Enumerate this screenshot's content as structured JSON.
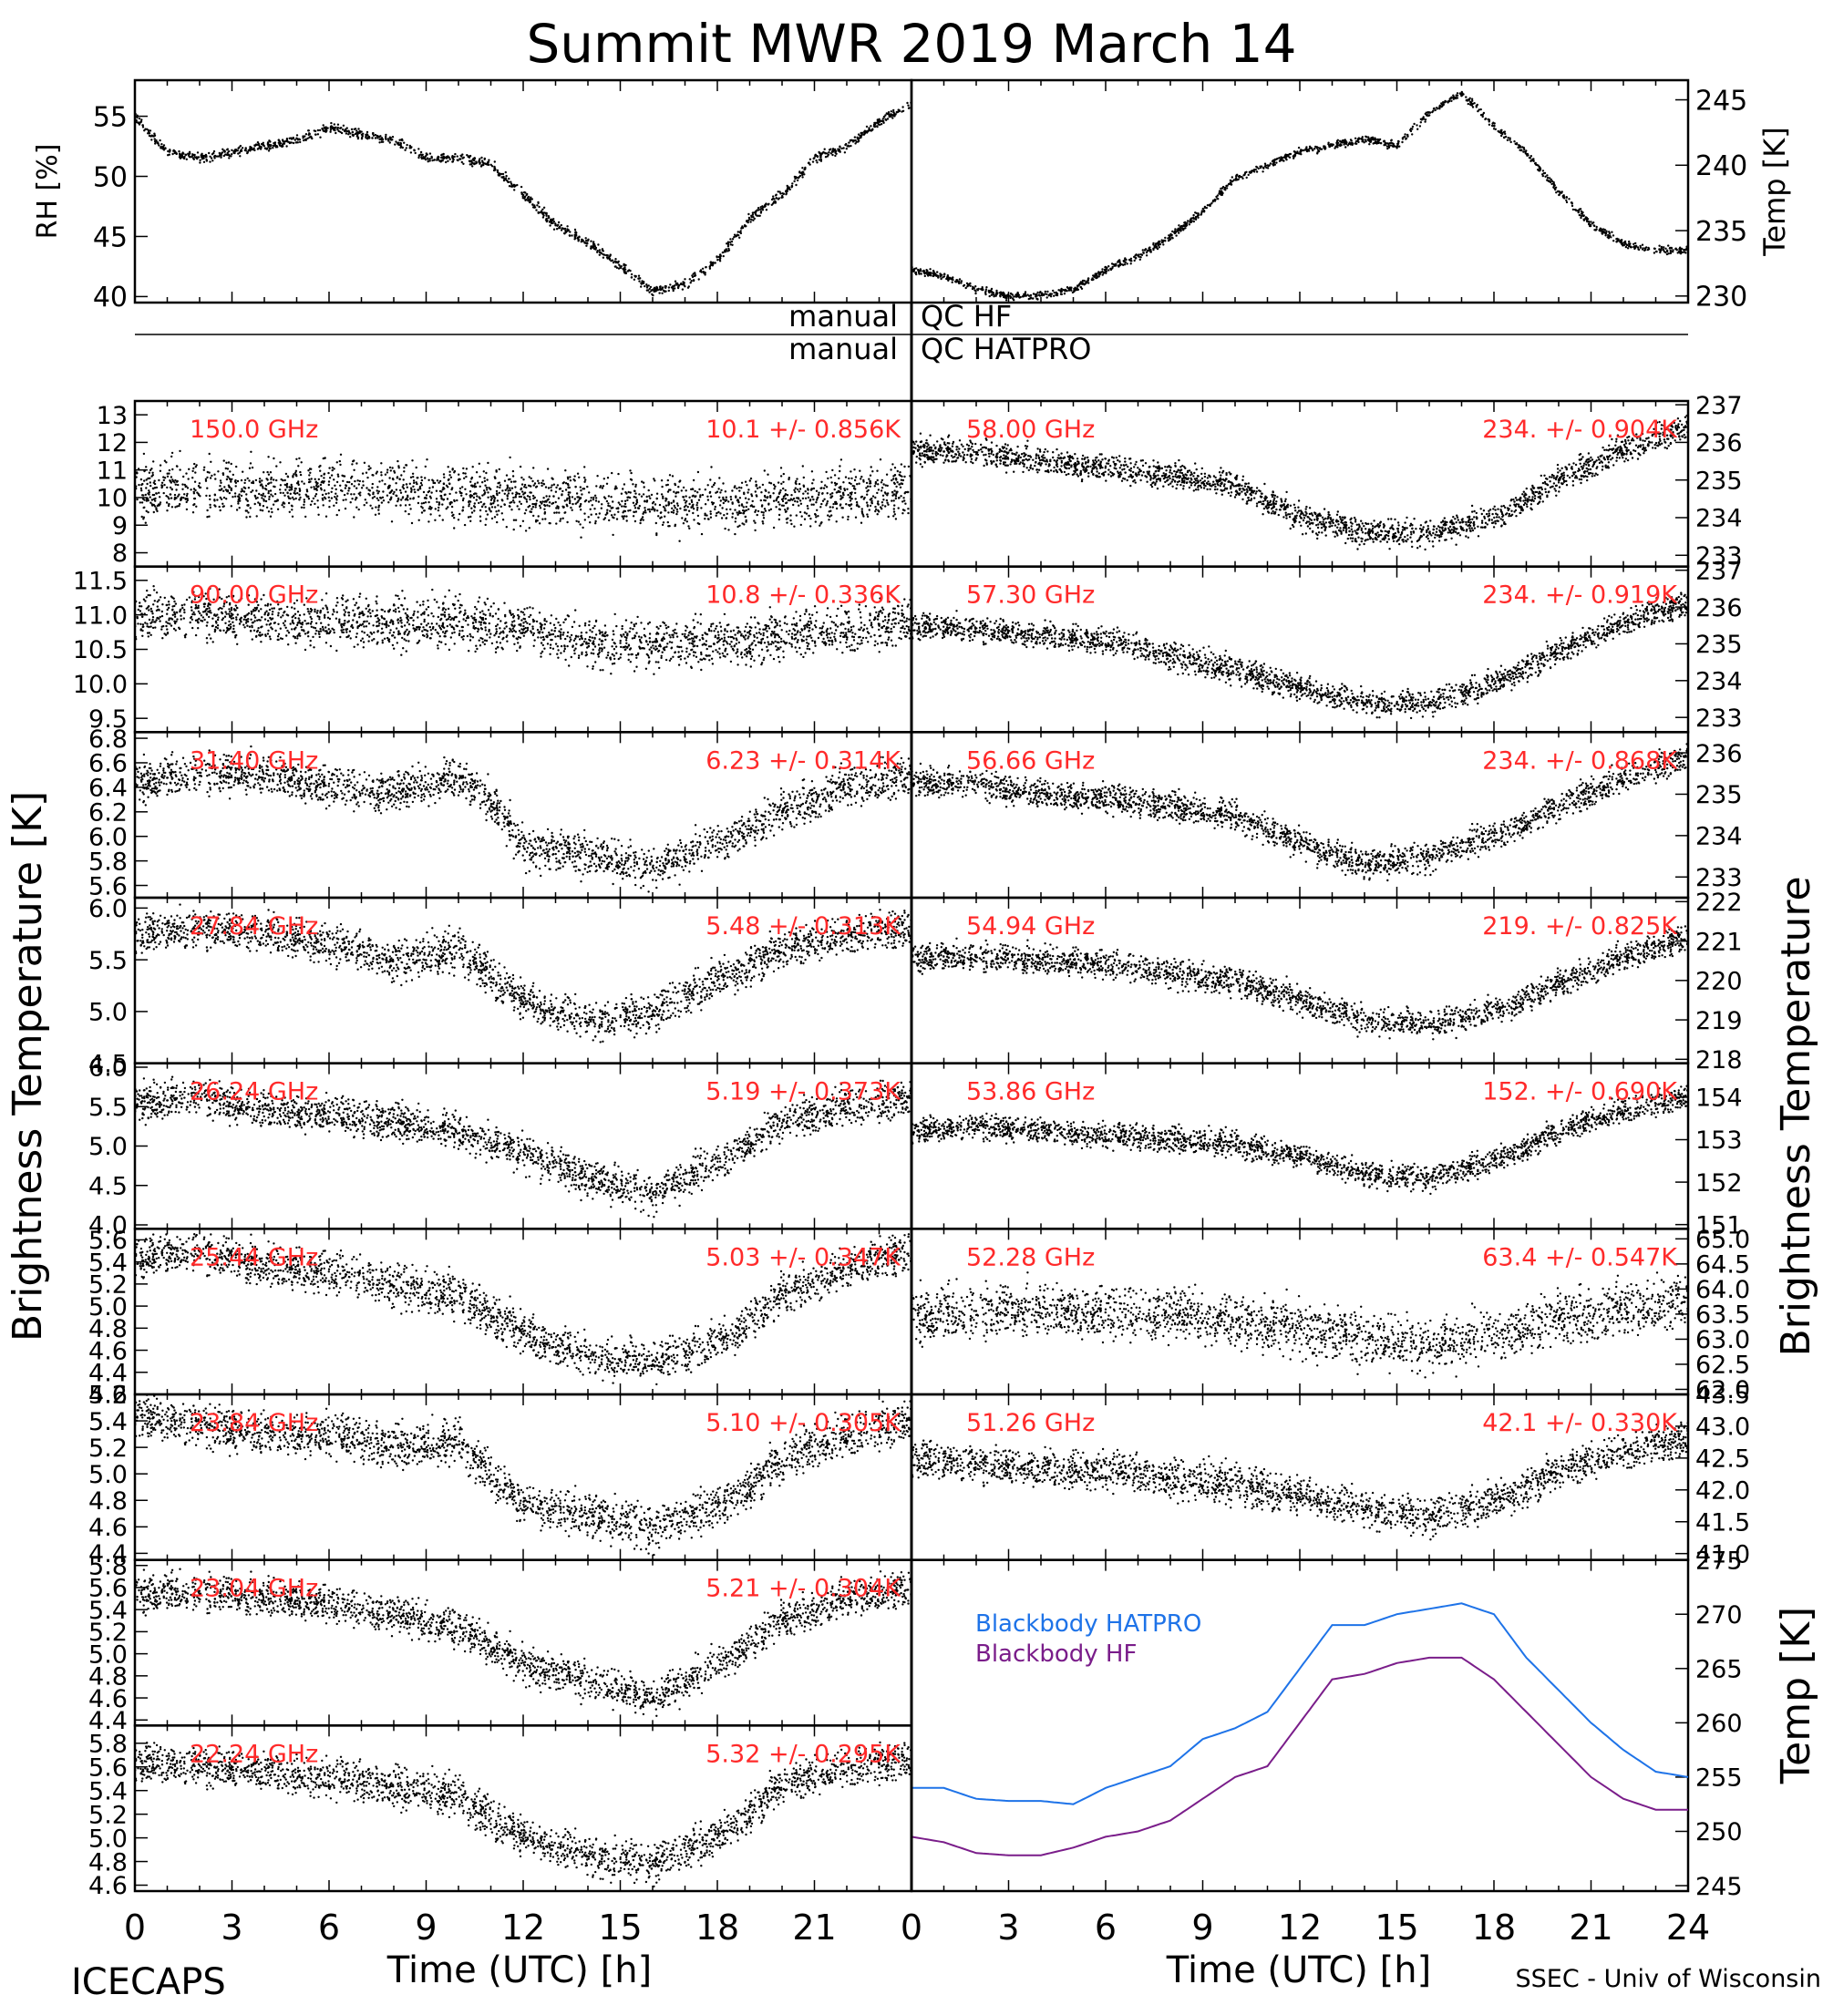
{
  "title": "Summit MWR 2019 March 14",
  "footer_left": "ICECAPS",
  "footer_right": "SSEC - Univ of Wisconsin",
  "left_ylabel": "Brightness Temperature [K]",
  "right_ylabel": "Brightness Temperature",
  "xlabel": "Time (UTC) [h]",
  "x_ticks": [
    "0",
    "3",
    "6",
    "9",
    "12",
    "15",
    "18",
    "21"
  ],
  "x_ticks_right": [
    "0",
    "3",
    "6",
    "9",
    "12",
    "15",
    "18",
    "21",
    "24"
  ],
  "qc_rows": [
    {
      "left": "manual",
      "right": "QC HF"
    },
    {
      "left": "manual",
      "right": "QC HATPRO"
    }
  ],
  "colors": {
    "annotation": "#ff2a2a",
    "hatpro": "#1e73e8",
    "hf": "#7a1d8a",
    "data": "#000000"
  },
  "chart_data": [
    {
      "type": "scatter",
      "panel": "RH",
      "ylabel": "RH [%]",
      "ylim": [
        39.5,
        58
      ],
      "yticks": [
        "40",
        "45",
        "50",
        "55"
      ],
      "x": [
        0,
        1,
        2,
        3,
        4,
        5,
        6,
        7,
        8,
        9,
        10,
        11,
        12,
        13,
        14,
        15,
        16,
        17,
        18,
        19,
        20,
        21,
        22,
        23,
        24
      ],
      "y": [
        55,
        52,
        51.5,
        52,
        52.5,
        53,
        54,
        53.5,
        53,
        51.5,
        51.5,
        51,
        48.5,
        46,
        44.5,
        42.5,
        40.5,
        41,
        43,
        46.5,
        48.5,
        51.5,
        52.5,
        54.5,
        56
      ]
    },
    {
      "type": "scatter",
      "panel": "Temp",
      "ylabel": "Temp [K]",
      "ylim": [
        229.5,
        246.5
      ],
      "yticks": [
        "230",
        "235",
        "240",
        "245"
      ],
      "x": [
        0,
        1,
        2,
        3,
        4,
        5,
        6,
        7,
        8,
        9,
        10,
        11,
        12,
        13,
        14,
        15,
        16,
        17,
        18,
        19,
        20,
        21,
        22,
        23,
        24
      ],
      "y": [
        232,
        231.5,
        230.5,
        230,
        230,
        230.5,
        232,
        233,
        234.5,
        236.5,
        239,
        240,
        241,
        241.5,
        242,
        241.5,
        244,
        245.5,
        243,
        241,
        238,
        235.5,
        234,
        233.5,
        233.5
      ]
    },
    {
      "type": "scatter",
      "series_label": "150.0 GHz",
      "stats": "10.1 +/- 0.856K",
      "ylim": [
        7.5,
        13.5
      ],
      "yticks": [
        "8",
        "9",
        "10",
        "11",
        "12",
        "13"
      ],
      "noise": 0.85,
      "x": [
        0,
        2,
        4,
        6,
        8,
        10,
        12,
        14,
        16,
        18,
        20,
        22,
        24
      ],
      "y": [
        10.3,
        10.4,
        10.2,
        10.4,
        10.3,
        10.2,
        10.0,
        9.9,
        9.8,
        9.8,
        9.9,
        10.1,
        10.3
      ]
    },
    {
      "type": "scatter",
      "series_label": "90.00 GHz",
      "stats": "10.8 +/- 0.336K",
      "ylim": [
        9.3,
        11.7
      ],
      "yticks": [
        "9.5",
        "10.0",
        "10.5",
        "11.0",
        "11.5"
      ],
      "noise": 0.3,
      "x": [
        0,
        2,
        4,
        6,
        8,
        10,
        12,
        14,
        16,
        18,
        20,
        22,
        24
      ],
      "y": [
        11.0,
        11.0,
        10.9,
        10.9,
        10.9,
        10.9,
        10.8,
        10.6,
        10.6,
        10.6,
        10.7,
        10.8,
        10.9
      ]
    },
    {
      "type": "scatter",
      "series_label": "31.40 GHz",
      "stats": "6.23 +/- 0.314K",
      "ylim": [
        5.5,
        6.85
      ],
      "yticks": [
        "5.6",
        "5.8",
        "6.0",
        "6.2",
        "6.4",
        "6.6",
        "6.8"
      ],
      "noise": 0.14,
      "x": [
        0,
        2,
        4,
        6,
        8,
        10,
        11,
        12,
        14,
        16,
        18,
        20,
        22,
        24
      ],
      "y": [
        6.45,
        6.5,
        6.5,
        6.4,
        6.35,
        6.5,
        6.3,
        5.9,
        5.85,
        5.75,
        5.95,
        6.2,
        6.4,
        6.5
      ]
    },
    {
      "type": "scatter",
      "series_label": "27.84 GHz",
      "stats": "5.48 +/- 0.313K",
      "ylim": [
        4.5,
        6.1
      ],
      "yticks": [
        "4.5",
        "5.0",
        "5.5",
        "6.0"
      ],
      "noise": 0.16,
      "x": [
        0,
        2,
        4,
        6,
        8,
        10,
        12,
        14,
        16,
        18,
        20,
        22,
        24
      ],
      "y": [
        5.75,
        5.8,
        5.75,
        5.65,
        5.5,
        5.6,
        5.1,
        4.9,
        5.0,
        5.3,
        5.6,
        5.75,
        5.8
      ]
    },
    {
      "type": "scatter",
      "series_label": "26.24 GHz",
      "stats": "5.19 +/- 0.373K",
      "ylim": [
        3.95,
        6.05
      ],
      "yticks": [
        "4.0",
        "4.5",
        "5.0",
        "5.5",
        "6.0"
      ],
      "noise": 0.2,
      "x": [
        0,
        2,
        4,
        6,
        8,
        10,
        12,
        14,
        16,
        18,
        20,
        22,
        24
      ],
      "y": [
        5.55,
        5.6,
        5.45,
        5.4,
        5.3,
        5.2,
        4.9,
        4.6,
        4.4,
        4.8,
        5.3,
        5.5,
        5.6
      ]
    },
    {
      "type": "scatter",
      "series_label": "25.44 GHz",
      "stats": "5.03 +/- 0.347K",
      "ylim": [
        4.2,
        5.7
      ],
      "yticks": [
        "4.2",
        "4.4",
        "4.6",
        "4.8",
        "5.0",
        "5.2",
        "5.4",
        "5.6"
      ],
      "noise": 0.16,
      "x": [
        0,
        2,
        4,
        6,
        8,
        10,
        12,
        14,
        16,
        18,
        20,
        22,
        24
      ],
      "y": [
        5.45,
        5.5,
        5.35,
        5.3,
        5.2,
        5.1,
        4.75,
        4.55,
        4.5,
        4.65,
        5.1,
        5.35,
        5.5
      ]
    },
    {
      "type": "scatter",
      "series_label": "23.84 GHz",
      "stats": "5.10 +/- 0.305K",
      "ylim": [
        4.35,
        5.6
      ],
      "yticks": [
        "4.4",
        "4.6",
        "4.8",
        "5.0",
        "5.2",
        "5.4",
        "5.6"
      ],
      "noise": 0.14,
      "x": [
        0,
        2,
        4,
        6,
        8,
        10,
        12,
        14,
        16,
        18,
        20,
        22,
        24
      ],
      "y": [
        5.45,
        5.35,
        5.3,
        5.3,
        5.2,
        5.25,
        4.75,
        4.7,
        4.6,
        4.75,
        5.1,
        5.3,
        5.4
      ]
    },
    {
      "type": "scatter",
      "series_label": "23.04 GHz",
      "stats": "5.21 +/- 0.304K",
      "ylim": [
        4.35,
        5.85
      ],
      "yticks": [
        "4.4",
        "4.6",
        "4.8",
        "5.0",
        "5.2",
        "5.4",
        "5.6",
        "5.8"
      ],
      "noise": 0.14,
      "x": [
        0,
        2,
        4,
        6,
        8,
        10,
        12,
        14,
        16,
        18,
        20,
        22,
        24
      ],
      "y": [
        5.55,
        5.55,
        5.5,
        5.45,
        5.35,
        5.25,
        4.9,
        4.75,
        4.6,
        4.9,
        5.3,
        5.5,
        5.6
      ]
    },
    {
      "type": "scatter",
      "series_label": "22.24 GHz",
      "stats": "5.32 +/- 0.295K",
      "ylim": [
        4.55,
        5.95
      ],
      "yticks": [
        "4.6",
        "4.8",
        "5.0",
        "5.2",
        "5.4",
        "5.6",
        "5.8"
      ],
      "noise": 0.14,
      "x": [
        0,
        2,
        4,
        6,
        8,
        10,
        12,
        14,
        16,
        18,
        20,
        22,
        24
      ],
      "y": [
        5.65,
        5.6,
        5.55,
        5.5,
        5.45,
        5.35,
        5.0,
        4.85,
        4.8,
        5.0,
        5.45,
        5.6,
        5.65
      ]
    },
    {
      "type": "scatter",
      "series_label": "58.00 GHz",
      "stats": "234. +/- 0.904K",
      "ylim": [
        232.7,
        237.1
      ],
      "yticks": [
        "233",
        "234",
        "235",
        "236",
        "237"
      ],
      "noise": 0.3,
      "x": [
        0,
        2,
        4,
        6,
        8,
        10,
        12,
        14,
        16,
        18,
        20,
        22,
        24
      ],
      "y": [
        235.8,
        235.7,
        235.5,
        235.3,
        235.1,
        234.9,
        234.0,
        233.6,
        233.6,
        234.0,
        235.0,
        235.8,
        236.4
      ]
    },
    {
      "type": "scatter",
      "series_label": "57.30 GHz",
      "stats": "234. +/- 0.919K",
      "ylim": [
        232.6,
        237.1
      ],
      "yticks": [
        "233",
        "234",
        "235",
        "236",
        "237"
      ],
      "noise": 0.3,
      "x": [
        0,
        2,
        4,
        6,
        8,
        10,
        12,
        14,
        16,
        18,
        20,
        22,
        24
      ],
      "y": [
        235.5,
        235.4,
        235.2,
        235.1,
        234.7,
        234.3,
        233.8,
        233.4,
        233.4,
        233.9,
        234.8,
        235.6,
        236.1
      ]
    },
    {
      "type": "scatter",
      "series_label": "56.66 GHz",
      "stats": "234. +/- 0.868K",
      "ylim": [
        232.5,
        236.5
      ],
      "yticks": [
        "233",
        "234",
        "235",
        "236"
      ],
      "noise": 0.3,
      "x": [
        0,
        2,
        4,
        6,
        8,
        10,
        12,
        14,
        16,
        18,
        20,
        22,
        24
      ],
      "y": [
        235.3,
        235.2,
        235.0,
        234.9,
        234.7,
        234.5,
        233.8,
        233.3,
        233.5,
        234.0,
        234.7,
        235.4,
        235.9
      ]
    },
    {
      "type": "scatter",
      "series_label": "54.94 GHz",
      "stats": "219. +/- 0.825K",
      "ylim": [
        217.9,
        222.1
      ],
      "yticks": [
        "218",
        "219",
        "220",
        "221",
        "222"
      ],
      "noise": 0.3,
      "x": [
        0,
        2,
        4,
        6,
        8,
        10,
        12,
        14,
        16,
        18,
        20,
        22,
        24
      ],
      "y": [
        220.6,
        220.6,
        220.5,
        220.4,
        220.2,
        220.0,
        219.5,
        219.0,
        218.9,
        219.2,
        219.9,
        220.6,
        221.1
      ]
    },
    {
      "type": "scatter",
      "series_label": "53.86 GHz",
      "stats": "152. +/- 0.690K",
      "ylim": [
        150.9,
        154.8
      ],
      "yticks": [
        "151",
        "152",
        "153",
        "154"
      ],
      "noise": 0.25,
      "x": [
        0,
        2,
        4,
        6,
        8,
        10,
        12,
        14,
        16,
        18,
        20,
        22,
        24
      ],
      "y": [
        153.2,
        153.3,
        153.2,
        153.1,
        153.0,
        152.9,
        152.6,
        152.2,
        152.1,
        152.5,
        153.2,
        153.7,
        154.0
      ]
    },
    {
      "type": "scatter",
      "series_label": "52.28 GHz",
      "stats": "63.4 +/- 0.547K",
      "ylim": [
        61.9,
        65.2
      ],
      "yticks": [
        "62.0",
        "62.5",
        "63.0",
        "63.5",
        "64.0",
        "64.5",
        "65.0"
      ],
      "noise": 0.45,
      "x": [
        0,
        2,
        4,
        6,
        8,
        10,
        12,
        14,
        16,
        18,
        20,
        22,
        24
      ],
      "y": [
        63.5,
        63.5,
        63.6,
        63.5,
        63.5,
        63.4,
        63.2,
        63.0,
        62.9,
        63.1,
        63.4,
        63.6,
        63.8
      ]
    },
    {
      "type": "scatter",
      "series_label": "51.26 GHz",
      "stats": "42.1 +/- 0.330K",
      "ylim": [
        40.9,
        43.5
      ],
      "yticks": [
        "41.0",
        "41.5",
        "42.0",
        "42.5",
        "43.0",
        "43.5"
      ],
      "noise": 0.25,
      "x": [
        0,
        2,
        4,
        6,
        8,
        10,
        12,
        14,
        16,
        18,
        20,
        22,
        24
      ],
      "y": [
        42.5,
        42.4,
        42.3,
        42.3,
        42.2,
        42.1,
        41.9,
        41.7,
        41.6,
        41.8,
        42.3,
        42.6,
        42.8
      ]
    },
    {
      "type": "line",
      "panel": "Blackbody",
      "ylabel": "Temp [K]",
      "ylim": [
        244.5,
        275
      ],
      "yticks": [
        "245",
        "250",
        "255",
        "260",
        "265",
        "270",
        "275"
      ],
      "x": [
        0,
        1,
        2,
        3,
        4,
        5,
        6,
        7,
        8,
        9,
        10,
        11,
        12,
        13,
        14,
        15,
        16,
        17,
        18,
        19,
        20,
        21,
        22,
        23,
        24
      ],
      "series": [
        {
          "name": "Blackbody HATPRO",
          "values": [
            254,
            254,
            253,
            252.8,
            252.8,
            252.5,
            254,
            255,
            256,
            258.5,
            259.5,
            261,
            265,
            269,
            269,
            270,
            270.5,
            271,
            270,
            266,
            263,
            260,
            257.5,
            255.5,
            255
          ]
        },
        {
          "name": "Blackbody HF",
          "values": [
            249.5,
            249,
            248,
            247.8,
            247.8,
            248.5,
            249.5,
            250,
            251,
            253,
            255,
            256,
            260,
            264,
            264.5,
            265.5,
            266,
            266,
            264,
            261,
            258,
            255,
            253,
            252,
            252
          ]
        }
      ]
    }
  ]
}
